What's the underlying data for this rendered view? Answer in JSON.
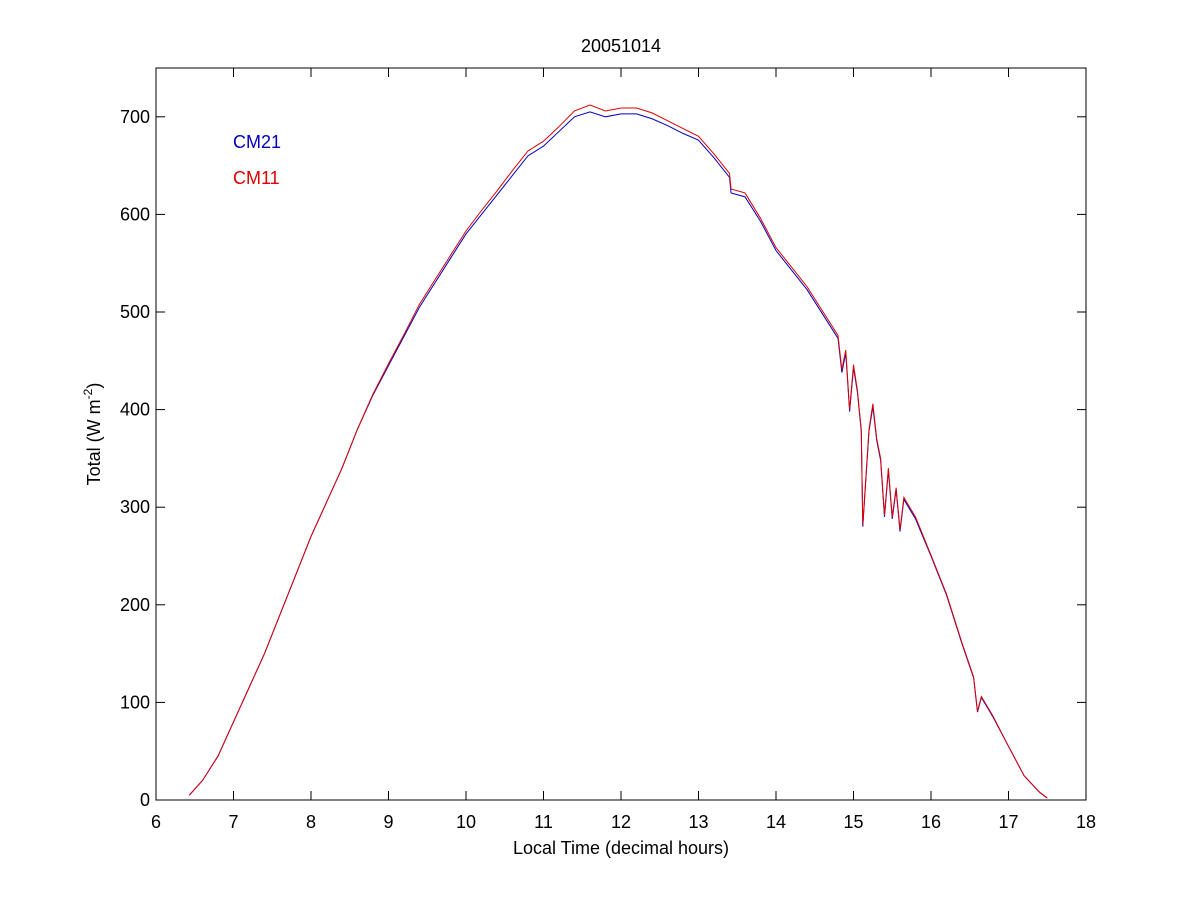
{
  "chart_data": {
    "type": "line",
    "title": "20051014",
    "xlabel": "Local Time (decimal hours)",
    "ylabel_parts": [
      "Total (W m",
      "-2",
      ")"
    ],
    "x": [
      6.43,
      6.6,
      6.8,
      7.0,
      7.2,
      7.4,
      7.6,
      7.8,
      8.0,
      8.2,
      8.4,
      8.6,
      8.8,
      9.0,
      9.2,
      9.4,
      9.6,
      9.8,
      10.0,
      10.2,
      10.4,
      10.6,
      10.8,
      11.0,
      11.2,
      11.4,
      11.6,
      11.8,
      12.0,
      12.2,
      12.4,
      12.6,
      12.8,
      13.0,
      13.2,
      13.4,
      13.42,
      13.6,
      13.8,
      14.0,
      14.2,
      14.4,
      14.6,
      14.8,
      14.85,
      14.9,
      14.95,
      15.0,
      15.05,
      15.1,
      15.12,
      15.2,
      15.25,
      15.3,
      15.35,
      15.4,
      15.45,
      15.5,
      15.55,
      15.6,
      15.65,
      15.8,
      16.0,
      16.2,
      16.4,
      16.55,
      16.6,
      16.65,
      16.8,
      17.0,
      17.2,
      17.4,
      17.5
    ],
    "series": [
      {
        "name": "CM21",
        "color": "#0000c0",
        "values": [
          5,
          20,
          45,
          80,
          115,
          150,
          190,
          230,
          270,
          305,
          340,
          380,
          415,
          445,
          475,
          505,
          530,
          555,
          580,
          600,
          620,
          640,
          660,
          670,
          685,
          700,
          705,
          700,
          703,
          703,
          698,
          691,
          683,
          676,
          658,
          638,
          622,
          618,
          593,
          563,
          543,
          523,
          498,
          473,
          438,
          458,
          398,
          443,
          418,
          378,
          280,
          378,
          403,
          368,
          348,
          290,
          338,
          288,
          318,
          275,
          308,
          288,
          250,
          210,
          160,
          125,
          90,
          105,
          85,
          55,
          25,
          8,
          2
        ]
      },
      {
        "name": "CM11",
        "color": "#e00000",
        "values": [
          5,
          20,
          45,
          80,
          115,
          150,
          190,
          230,
          270,
          305,
          340,
          380,
          416,
          447,
          477,
          508,
          533,
          558,
          583,
          604,
          624,
          645,
          665,
          675,
          690,
          706,
          712,
          706,
          709,
          709,
          704,
          696,
          688,
          680,
          662,
          642,
          626,
          622,
          596,
          566,
          546,
          526,
          501,
          476,
          441,
          461,
          400,
          446,
          420,
          380,
          282,
          380,
          406,
          370,
          350,
          292,
          340,
          290,
          320,
          277,
          310,
          290,
          251,
          211,
          161,
          126,
          91,
          106,
          86,
          55,
          25,
          8,
          2
        ]
      }
    ],
    "xlim": [
      6,
      18
    ],
    "xticks": [
      6,
      7,
      8,
      9,
      10,
      11,
      12,
      13,
      14,
      15,
      16,
      17,
      18
    ],
    "ylim": [
      0,
      750
    ],
    "yticks": [
      0,
      100,
      200,
      300,
      400,
      500,
      600,
      700
    ],
    "grid": false,
    "legend": "upper left"
  }
}
